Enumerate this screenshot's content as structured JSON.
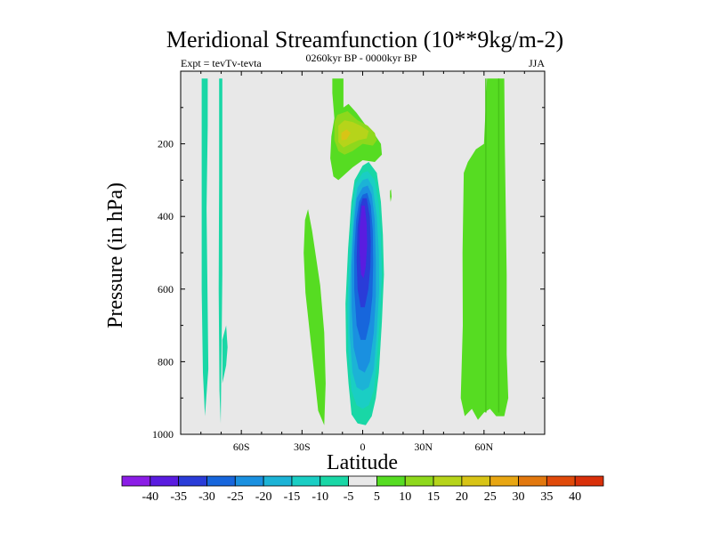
{
  "chart_data": {
    "type": "contour",
    "title": "Meridional Streamfunction (10**9kg/m-2)",
    "subtitle_left": "Expt = tevTv-tevta",
    "subtitle_center": "0260kyr BP - 0000kyr BP",
    "subtitle_right": "JJA",
    "xlabel": "Latitude",
    "ylabel": "Pressure (in hPa)",
    "xlim": [
      -90,
      90
    ],
    "ylim": [
      0,
      1000
    ],
    "y_inverted": true,
    "x_ticks": [
      {
        "value": -60,
        "label": "60S"
      },
      {
        "value": -30,
        "label": "30S"
      },
      {
        "value": 0,
        "label": "0"
      },
      {
        "value": 30,
        "label": "30N"
      },
      {
        "value": 60,
        "label": "60N"
      }
    ],
    "y_ticks": [
      {
        "value": 200,
        "label": "200"
      },
      {
        "value": 400,
        "label": "400"
      },
      {
        "value": 600,
        "label": "600"
      },
      {
        "value": 800,
        "label": "800"
      },
      {
        "value": 1000,
        "label": "1000"
      }
    ],
    "background_color": "#e8e8e8",
    "colorbar": {
      "labels": [
        "-40",
        "-35",
        "-30",
        "-25",
        "-20",
        "-15",
        "-10",
        "-5",
        "5",
        "10",
        "15",
        "20",
        "25",
        "30",
        "35",
        "40"
      ],
      "colors": [
        "#8b1de6",
        "#5a1ce0",
        "#2a3cd8",
        "#1766dc",
        "#1a90e0",
        "#1cb3d6",
        "#1acec4",
        "#19d7a6",
        "#e8e8e8",
        "#56dc22",
        "#8ed81c",
        "#b6d41a",
        "#d8c416",
        "#e8a612",
        "#e2780e",
        "#e04a0a",
        "#d9300a"
      ]
    },
    "regions": [
      {
        "name": "sh-highlat-band-1",
        "level": -10,
        "color": "#19d7a6",
        "points": [
          [
            -79.6,
            20
          ],
          [
            -76.6,
            20
          ],
          [
            -76.6,
            150
          ],
          [
            -77.2,
            380
          ],
          [
            -76.3,
            820
          ],
          [
            -78,
            950
          ],
          [
            -79,
            830
          ],
          [
            -79.6,
            600
          ]
        ]
      },
      {
        "name": "sh-highlat-band-2",
        "level": -10,
        "color": "#19d7a6",
        "points": [
          [
            -71,
            20
          ],
          [
            -69.4,
            20
          ],
          [
            -69.4,
            270
          ],
          [
            -69.4,
            560
          ],
          [
            -69.7,
            730
          ],
          [
            -70.2,
            970
          ],
          [
            -70.8,
            880
          ],
          [
            -71.2,
            600
          ],
          [
            -71,
            300
          ]
        ]
      },
      {
        "name": "sh-highlat-tail",
        "level": -10,
        "color": "#19d7a6",
        "points": [
          [
            -69.4,
            740
          ],
          [
            -67.5,
            700
          ],
          [
            -66.8,
            760
          ],
          [
            -67.5,
            810
          ],
          [
            -69.4,
            860
          ]
        ]
      },
      {
        "name": "subtropical-green-strip",
        "level": 5,
        "color": "#56dc22",
        "points": [
          [
            -28.5,
            410
          ],
          [
            -27,
            380
          ],
          [
            -25,
            440
          ],
          [
            -21,
            590
          ],
          [
            -19,
            720
          ],
          [
            -18.3,
            860
          ],
          [
            -19,
            975
          ],
          [
            -22,
            935
          ],
          [
            -25,
            780
          ],
          [
            -28.3,
            610
          ],
          [
            -29.2,
            500
          ]
        ]
      },
      {
        "name": "upper-green-cap",
        "level": 5,
        "color": "#56dc22",
        "points": [
          [
            -15,
            20
          ],
          [
            -9.5,
            20
          ],
          [
            -9.5,
            100
          ],
          [
            -7,
            90
          ],
          [
            -3,
            115
          ],
          [
            3,
            160
          ],
          [
            6,
            175
          ],
          [
            9,
            200
          ],
          [
            9.5,
            230
          ],
          [
            6,
            250
          ],
          [
            0,
            245
          ],
          [
            -5,
            265
          ],
          [
            -9,
            285
          ],
          [
            -12,
            300
          ],
          [
            -14.5,
            290
          ],
          [
            -16,
            240
          ],
          [
            -15.5,
            180
          ],
          [
            -14,
            130
          ],
          [
            -15,
            60
          ]
        ]
      },
      {
        "name": "upper-yellow-core",
        "level": 10,
        "color": "#8ed81c",
        "points": [
          [
            -14,
            140
          ],
          [
            -12.5,
            120
          ],
          [
            -7.5,
            110
          ],
          [
            -2.5,
            135
          ],
          [
            2.5,
            150
          ],
          [
            6,
            170
          ],
          [
            7,
            190
          ],
          [
            5,
            205
          ],
          [
            0,
            200
          ],
          [
            -5,
            220
          ],
          [
            -9,
            230
          ],
          [
            -12,
            220
          ],
          [
            -14,
            190
          ]
        ]
      },
      {
        "name": "upper-yellow-inner",
        "level": 15,
        "color": "#b6d41a",
        "points": [
          [
            -12,
            150
          ],
          [
            -9,
            135
          ],
          [
            -5,
            140
          ],
          [
            -1,
            150
          ],
          [
            3,
            165
          ],
          [
            2,
            185
          ],
          [
            -2,
            190
          ],
          [
            -6,
            200
          ],
          [
            -9.5,
            210
          ],
          [
            -12,
            195
          ]
        ]
      },
      {
        "name": "upper-orange-core",
        "level": 20,
        "color": "#d8c416",
        "points": [
          [
            -10.5,
            170
          ],
          [
            -8,
            160
          ],
          [
            -6,
            170
          ],
          [
            -8,
            188
          ],
          [
            -10.5,
            190
          ]
        ]
      },
      {
        "name": "nh-green-band-wide",
        "level": 5,
        "color": "#56dc22",
        "points": [
          [
            50,
            280
          ],
          [
            52,
            250
          ],
          [
            56,
            215
          ],
          [
            60,
            200
          ],
          [
            61.5,
            20
          ],
          [
            70,
            20
          ],
          [
            70.3,
            200
          ],
          [
            71.2,
            560
          ],
          [
            71.2,
            780
          ],
          [
            72,
            900
          ],
          [
            70,
            950
          ],
          [
            66,
            950
          ],
          [
            63,
            930
          ],
          [
            60,
            940
          ],
          [
            57,
            960
          ],
          [
            54,
            930
          ],
          [
            50.5,
            950
          ],
          [
            48.5,
            900
          ],
          [
            49.5,
            700
          ],
          [
            49.4,
            500
          ]
        ]
      },
      {
        "name": "nh-dark-green-line-1",
        "level": 10,
        "color": "#46c418",
        "points": [
          [
            60.6,
            20
          ],
          [
            61.2,
            20
          ],
          [
            61.2,
            940
          ],
          [
            60.6,
            940
          ]
        ]
      },
      {
        "name": "nh-dark-green-line-2",
        "level": 10,
        "color": "#46c418",
        "points": [
          [
            67,
            20
          ],
          [
            67.6,
            20
          ],
          [
            67.6,
            940
          ],
          [
            67,
            940
          ]
        ]
      },
      {
        "name": "tiny-green-dot",
        "level": 5,
        "color": "#56dc22",
        "points": [
          [
            13.5,
            330
          ],
          [
            14,
            325
          ],
          [
            14.3,
            345
          ],
          [
            13.8,
            360
          ],
          [
            13.5,
            345
          ]
        ]
      },
      {
        "name": "tropical-blue-lobe-l1",
        "level": -5,
        "color": "#19d7a6",
        "points": [
          [
            0,
            260
          ],
          [
            3,
            250
          ],
          [
            7,
            280
          ],
          [
            9,
            360
          ],
          [
            10,
            450
          ],
          [
            10.5,
            560
          ],
          [
            9.5,
            690
          ],
          [
            8,
            830
          ],
          [
            6.5,
            900
          ],
          [
            4.5,
            950
          ],
          [
            1.5,
            975
          ],
          [
            -2.5,
            970
          ],
          [
            -5.5,
            945
          ],
          [
            -7,
            860
          ],
          [
            -8.2,
            770
          ],
          [
            -8.5,
            640
          ],
          [
            -7.2,
            490
          ],
          [
            -5.6,
            360
          ],
          [
            -4,
            300
          ]
        ]
      },
      {
        "name": "tropical-blue-lobe-l2",
        "level": -10,
        "color": "#1acec4",
        "points": [
          [
            0,
            280
          ],
          [
            2.5,
            275
          ],
          [
            6,
            300
          ],
          [
            8,
            370
          ],
          [
            9,
            460
          ],
          [
            9.5,
            560
          ],
          [
            8.5,
            680
          ],
          [
            7,
            800
          ],
          [
            5.5,
            880
          ],
          [
            3,
            920
          ],
          [
            0,
            930
          ],
          [
            -3,
            920
          ],
          [
            -5.5,
            880
          ],
          [
            -7,
            780
          ],
          [
            -7.6,
            650
          ],
          [
            -6.6,
            500
          ],
          [
            -5.2,
            380
          ],
          [
            -3.5,
            310
          ]
        ]
      },
      {
        "name": "tropical-blue-lobe-l3",
        "level": -15,
        "color": "#1cb3d6",
        "points": [
          [
            0,
            300
          ],
          [
            2.5,
            295
          ],
          [
            5,
            320
          ],
          [
            7,
            400
          ],
          [
            8,
            500
          ],
          [
            8.2,
            600
          ],
          [
            7,
            720
          ],
          [
            5.5,
            820
          ],
          [
            3,
            870
          ],
          [
            0,
            880
          ],
          [
            -3,
            870
          ],
          [
            -5,
            830
          ],
          [
            -6.5,
            720
          ],
          [
            -6.5,
            600
          ],
          [
            -5.5,
            480
          ],
          [
            -4.2,
            380
          ],
          [
            -2.5,
            320
          ]
        ]
      },
      {
        "name": "tropical-blue-lobe-l4",
        "level": -20,
        "color": "#1a90e0",
        "points": [
          [
            0,
            320
          ],
          [
            2.5,
            315
          ],
          [
            4.5,
            340
          ],
          [
            6,
            410
          ],
          [
            6.5,
            520
          ],
          [
            6.5,
            620
          ],
          [
            5.5,
            720
          ],
          [
            3.5,
            800
          ],
          [
            1,
            830
          ],
          [
            -2,
            820
          ],
          [
            -4.5,
            760
          ],
          [
            -5.5,
            650
          ],
          [
            -5.5,
            540
          ],
          [
            -4.5,
            430
          ],
          [
            -3,
            350
          ]
        ]
      },
      {
        "name": "tropical-blue-lobe-l5",
        "level": -25,
        "color": "#1766dc",
        "points": [
          [
            0,
            340
          ],
          [
            2.3,
            335
          ],
          [
            4,
            370
          ],
          [
            5,
            440
          ],
          [
            5.2,
            530
          ],
          [
            4.8,
            620
          ],
          [
            3.5,
            690
          ],
          [
            1.5,
            740
          ],
          [
            -1,
            740
          ],
          [
            -3,
            700
          ],
          [
            -4.2,
            600
          ],
          [
            -4.2,
            500
          ],
          [
            -3.2,
            410
          ],
          [
            -1.8,
            360
          ]
        ]
      },
      {
        "name": "tropical-blue-lobe-l6",
        "level": -30,
        "color": "#2a3cd8",
        "points": [
          [
            0,
            350
          ],
          [
            2,
            350
          ],
          [
            3.5,
            400
          ],
          [
            4,
            470
          ],
          [
            3.8,
            540
          ],
          [
            2.8,
            600
          ],
          [
            1,
            650
          ],
          [
            -1,
            650
          ],
          [
            -2.5,
            600
          ],
          [
            -3,
            520
          ],
          [
            -2.5,
            430
          ],
          [
            -1.2,
            370
          ]
        ]
      },
      {
        "name": "tropical-blue-lobe-core",
        "level": -35,
        "color": "#5a1ce0",
        "points": [
          [
            -0.5,
            370
          ],
          [
            1,
            370
          ],
          [
            2,
            420
          ],
          [
            2.2,
            480
          ],
          [
            1.5,
            540
          ],
          [
            0.5,
            570
          ],
          [
            -0.8,
            560
          ],
          [
            -1.5,
            500
          ],
          [
            -1.5,
            430
          ]
        ]
      }
    ]
  }
}
